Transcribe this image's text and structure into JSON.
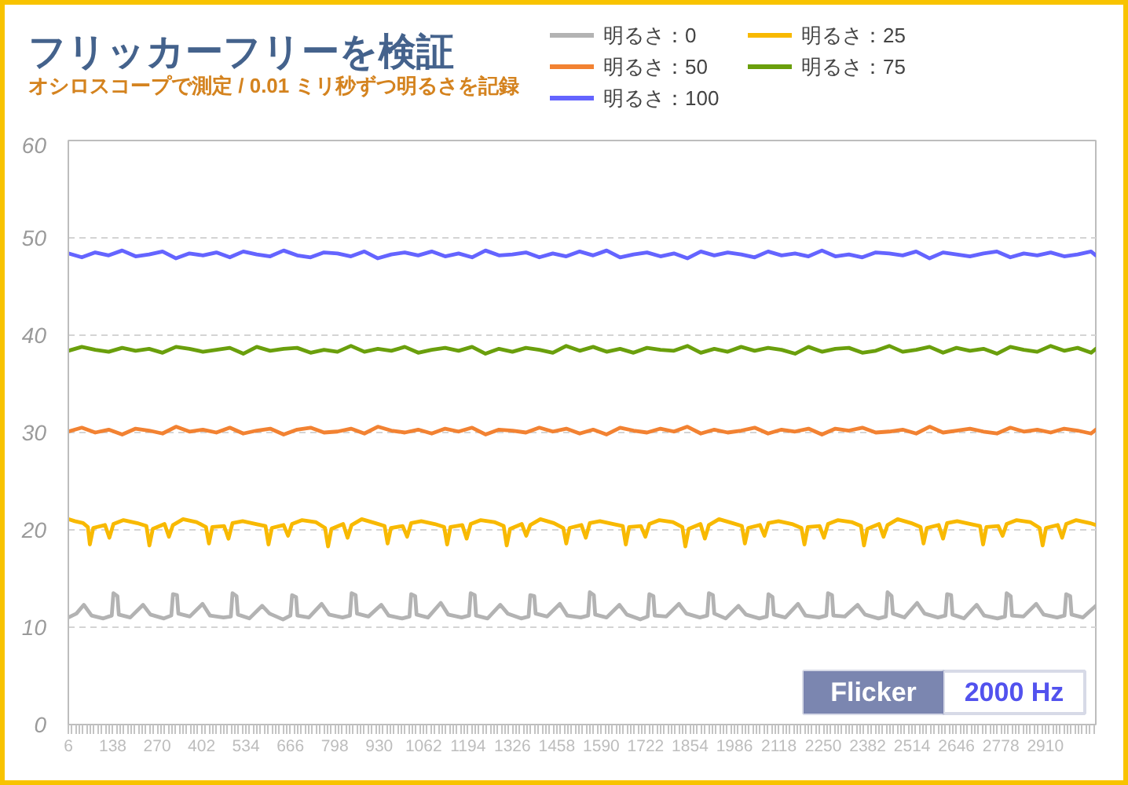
{
  "chart_data": {
    "type": "line",
    "title": "フリッカーフリーを検証",
    "subtitle": "オシロスコープで測定 / 0.01 ミリ秒ずつ明るさを記録",
    "annotations": [
      "Flicker",
      "2000 Hz"
    ],
    "xlim": [
      6,
      3060
    ],
    "xticks": [
      6,
      138,
      270,
      402,
      534,
      666,
      798,
      930,
      1062,
      1194,
      1326,
      1458,
      1590,
      1722,
      1854,
      1986,
      2118,
      2250,
      2382,
      2514,
      2646,
      2778,
      2910
    ],
    "ylim": [
      0,
      60
    ],
    "yticks": [
      0,
      10,
      20,
      30,
      40,
      50,
      60
    ],
    "grid": "y",
    "legend": "top right",
    "x": [
      6,
      46,
      86,
      126,
      166,
      206,
      246,
      286,
      326,
      366,
      406,
      446,
      486,
      526,
      566,
      606,
      646,
      686,
      726,
      766,
      806,
      846,
      886,
      926,
      966,
      1006,
      1046,
      1086,
      1126,
      1166,
      1206,
      1246,
      1286,
      1326,
      1366,
      1406,
      1446,
      1486,
      1526,
      1566,
      1606,
      1646,
      1686,
      1726,
      1766,
      1806,
      1846,
      1886,
      1926,
      1966,
      2006,
      2046,
      2086,
      2126,
      2166,
      2206,
      2246,
      2286,
      2326,
      2366,
      2406,
      2446,
      2486,
      2526,
      2566,
      2606,
      2646,
      2686,
      2726,
      2766,
      2806,
      2846,
      2886,
      2926,
      2966,
      3006,
      3046,
      3060
    ],
    "series": [
      {
        "name": "明るさ：0",
        "color": "#b3b3b3",
        "x": [
          6,
          30,
          52,
          75,
          110,
          135,
          140,
          152,
          156,
          190,
          228,
          250,
          290,
          312,
          317,
          329,
          333,
          367,
          405,
          427,
          467,
          489,
          494,
          506,
          510,
          544,
          582,
          604,
          644,
          666,
          671,
          683,
          687,
          721,
          759,
          781,
          821,
          843,
          848,
          860,
          864,
          898,
          936,
          958,
          998,
          1020,
          1025,
          1037,
          1041,
          1075,
          1113,
          1135,
          1175,
          1197,
          1202,
          1214,
          1218,
          1252,
          1290,
          1312,
          1352,
          1374,
          1379,
          1391,
          1395,
          1429,
          1467,
          1489,
          1529,
          1551,
          1556,
          1568,
          1572,
          1606,
          1644,
          1666,
          1706,
          1728,
          1733,
          1745,
          1749,
          1783,
          1821,
          1843,
          1883,
          1905,
          1910,
          1922,
          1926,
          1960,
          1998,
          2020,
          2060,
          2082,
          2087,
          2099,
          2103,
          2137,
          2175,
          2197,
          2237,
          2259,
          2264,
          2276,
          2280,
          2314,
          2352,
          2374,
          2414,
          2436,
          2441,
          2453,
          2457,
          2491,
          2529,
          2551,
          2591,
          2613,
          2618,
          2630,
          2634,
          2668,
          2706,
          2728,
          2768,
          2790,
          2795,
          2807,
          2811,
          2845,
          2883,
          2905,
          2945,
          2967,
          2972,
          2984,
          2988,
          3022,
          3060
        ],
        "values": [
          11.0,
          11.4,
          12.3,
          11.2,
          10.9,
          11.2,
          13.5,
          13.2,
          11.3,
          11.0,
          12.3,
          11.3,
          10.9,
          11.2,
          13.4,
          13.3,
          11.4,
          11.1,
          12.4,
          11.2,
          11.0,
          11.1,
          13.5,
          13.2,
          11.3,
          10.9,
          12.2,
          11.4,
          10.8,
          11.2,
          13.3,
          13.1,
          11.2,
          11.0,
          12.4,
          11.3,
          11.0,
          11.2,
          13.5,
          13.3,
          11.4,
          11.1,
          12.3,
          11.2,
          10.9,
          11.1,
          13.4,
          13.2,
          11.3,
          11.0,
          12.5,
          11.3,
          11.0,
          11.2,
          13.5,
          13.3,
          11.2,
          10.9,
          12.3,
          11.4,
          10.9,
          11.1,
          13.3,
          13.2,
          11.4,
          11.1,
          12.4,
          11.2,
          11.0,
          11.2,
          13.6,
          13.3,
          11.3,
          11.0,
          12.3,
          11.3,
          10.8,
          11.1,
          13.4,
          13.2,
          11.2,
          11.1,
          12.4,
          11.4,
          11.0,
          11.2,
          13.5,
          13.3,
          11.4,
          10.9,
          12.2,
          11.3,
          10.9,
          11.1,
          13.4,
          13.1,
          11.3,
          11.0,
          12.4,
          11.2,
          11.0,
          11.2,
          13.5,
          13.3,
          11.2,
          11.1,
          12.3,
          11.3,
          10.9,
          11.1,
          13.6,
          13.2,
          11.4,
          11.0,
          12.5,
          11.4,
          11.0,
          11.2,
          13.4,
          13.3,
          11.3,
          10.9,
          12.3,
          11.2,
          10.9,
          11.1,
          13.5,
          13.2,
          11.2,
          11.1,
          12.4,
          11.3,
          11.0,
          11.2,
          13.4,
          13.2,
          11.3,
          11.0,
          12.2
        ]
      },
      {
        "name": "明るさ：25",
        "color": "#f8b900",
        "x": [
          6,
          25,
          50,
          64,
          70,
          80,
          115,
          128,
          140,
          170,
          210,
          238,
          247,
          257,
          292,
          305,
          317,
          347,
          387,
          415,
          424,
          434,
          469,
          482,
          494,
          524,
          564,
          592,
          601,
          611,
          646,
          659,
          671,
          701,
          741,
          769,
          778,
          788,
          823,
          836,
          848,
          878,
          918,
          946,
          955,
          965,
          1000,
          1013,
          1025,
          1055,
          1095,
          1123,
          1132,
          1142,
          1177,
          1190,
          1202,
          1232,
          1272,
          1300,
          1309,
          1319,
          1354,
          1367,
          1379,
          1409,
          1449,
          1477,
          1486,
          1496,
          1531,
          1544,
          1556,
          1586,
          1626,
          1654,
          1663,
          1673,
          1708,
          1721,
          1733,
          1763,
          1803,
          1831,
          1840,
          1850,
          1885,
          1898,
          1910,
          1940,
          1980,
          2008,
          2017,
          2027,
          2062,
          2075,
          2087,
          2117,
          2157,
          2185,
          2194,
          2204,
          2239,
          2252,
          2264,
          2294,
          2334,
          2362,
          2371,
          2381,
          2416,
          2429,
          2441,
          2471,
          2511,
          2539,
          2548,
          2558,
          2593,
          2606,
          2618,
          2648,
          2688,
          2716,
          2725,
          2735,
          2770,
          2783,
          2795,
          2825,
          2865,
          2893,
          2902,
          2912,
          2947,
          2960,
          2972,
          3002,
          3042,
          3060
        ],
        "values": [
          21.1,
          20.9,
          20.7,
          20.3,
          18.5,
          20.2,
          20.5,
          19.2,
          20.6,
          21.0,
          20.7,
          20.4,
          18.4,
          20.1,
          20.6,
          19.3,
          20.5,
          21.1,
          20.8,
          20.3,
          18.6,
          20.3,
          20.4,
          19.1,
          20.7,
          20.9,
          20.6,
          20.4,
          18.5,
          20.2,
          20.5,
          19.4,
          20.6,
          21.0,
          20.8,
          20.2,
          18.3,
          20.1,
          20.6,
          19.2,
          20.5,
          21.1,
          20.7,
          20.4,
          18.6,
          20.2,
          20.4,
          19.3,
          20.7,
          20.9,
          20.6,
          20.3,
          18.5,
          20.3,
          20.5,
          19.1,
          20.6,
          21.0,
          20.8,
          20.4,
          18.4,
          20.1,
          20.6,
          19.4,
          20.5,
          21.1,
          20.7,
          20.2,
          18.6,
          20.2,
          20.5,
          19.2,
          20.7,
          20.9,
          20.6,
          20.4,
          18.5,
          20.3,
          20.4,
          19.3,
          20.6,
          21.0,
          20.8,
          20.3,
          18.3,
          20.1,
          20.6,
          19.1,
          20.5,
          21.1,
          20.7,
          20.4,
          18.6,
          20.2,
          20.5,
          19.4,
          20.7,
          20.9,
          20.6,
          20.2,
          18.5,
          20.3,
          20.4,
          19.2,
          20.6,
          21.0,
          20.8,
          20.4,
          18.4,
          20.1,
          20.6,
          19.3,
          20.5,
          21.1,
          20.7,
          20.3,
          18.6,
          20.2,
          20.5,
          19.1,
          20.7,
          20.9,
          20.6,
          20.4,
          18.5,
          20.3,
          20.4,
          19.4,
          20.6,
          21.0,
          20.8,
          20.2,
          18.4,
          20.2,
          20.5,
          19.2,
          20.6,
          21.0,
          20.7,
          20.5
        ]
      },
      {
        "name": "明るさ：50",
        "color": "#f28232",
        "values": [
          30.1,
          30.5,
          30.0,
          30.3,
          29.8,
          30.4,
          30.2,
          29.9,
          30.6,
          30.1,
          30.3,
          30.0,
          30.5,
          29.9,
          30.2,
          30.4,
          29.8,
          30.3,
          30.5,
          30.0,
          30.1,
          30.4,
          29.9,
          30.6,
          30.2,
          30.0,
          30.3,
          29.9,
          30.4,
          30.1,
          30.5,
          29.8,
          30.3,
          30.2,
          30.0,
          30.5,
          30.1,
          30.4,
          29.9,
          30.3,
          29.8,
          30.5,
          30.2,
          30.0,
          30.4,
          30.1,
          30.6,
          29.9,
          30.3,
          30.0,
          30.2,
          30.5,
          29.9,
          30.3,
          30.1,
          30.4,
          29.8,
          30.4,
          30.2,
          30.5,
          30.0,
          30.1,
          30.3,
          29.9,
          30.6,
          30.0,
          30.2,
          30.4,
          30.1,
          29.9,
          30.5,
          30.1,
          30.3,
          30.0,
          30.4,
          30.2,
          29.9,
          30.3
        ]
      },
      {
        "name": "明るさ：75",
        "color": "#6a9f0c",
        "values": [
          38.4,
          38.8,
          38.5,
          38.3,
          38.7,
          38.4,
          38.6,
          38.2,
          38.8,
          38.6,
          38.3,
          38.5,
          38.7,
          38.1,
          38.8,
          38.4,
          38.6,
          38.7,
          38.2,
          38.5,
          38.3,
          38.9,
          38.3,
          38.6,
          38.4,
          38.8,
          38.2,
          38.5,
          38.7,
          38.4,
          38.8,
          38.1,
          38.6,
          38.3,
          38.7,
          38.5,
          38.2,
          38.9,
          38.4,
          38.8,
          38.3,
          38.6,
          38.2,
          38.7,
          38.5,
          38.4,
          38.9,
          38.2,
          38.6,
          38.3,
          38.8,
          38.4,
          38.7,
          38.5,
          38.1,
          38.8,
          38.3,
          38.6,
          38.7,
          38.2,
          38.4,
          38.9,
          38.3,
          38.5,
          38.8,
          38.2,
          38.7,
          38.4,
          38.6,
          38.1,
          38.8,
          38.5,
          38.3,
          38.9,
          38.4,
          38.7,
          38.2,
          38.6
        ]
      },
      {
        "name": "明るさ：100",
        "color": "#6464ff",
        "values": [
          48.4,
          48.0,
          48.5,
          48.2,
          48.7,
          48.1,
          48.3,
          48.6,
          47.9,
          48.4,
          48.2,
          48.5,
          48.0,
          48.6,
          48.3,
          48.1,
          48.7,
          48.2,
          48.0,
          48.5,
          48.4,
          48.1,
          48.6,
          47.9,
          48.3,
          48.5,
          48.2,
          48.6,
          48.1,
          48.4,
          48.0,
          48.7,
          48.2,
          48.3,
          48.5,
          48.0,
          48.4,
          48.1,
          48.6,
          48.2,
          48.7,
          48.0,
          48.3,
          48.5,
          48.1,
          48.4,
          47.9,
          48.6,
          48.2,
          48.5,
          48.3,
          48.0,
          48.6,
          48.2,
          48.4,
          48.1,
          48.7,
          48.1,
          48.3,
          48.0,
          48.5,
          48.4,
          48.2,
          48.6,
          47.9,
          48.5,
          48.3,
          48.1,
          48.4,
          48.6,
          48.0,
          48.4,
          48.2,
          48.5,
          48.1,
          48.3,
          48.6,
          48.2
        ]
      }
    ]
  }
}
